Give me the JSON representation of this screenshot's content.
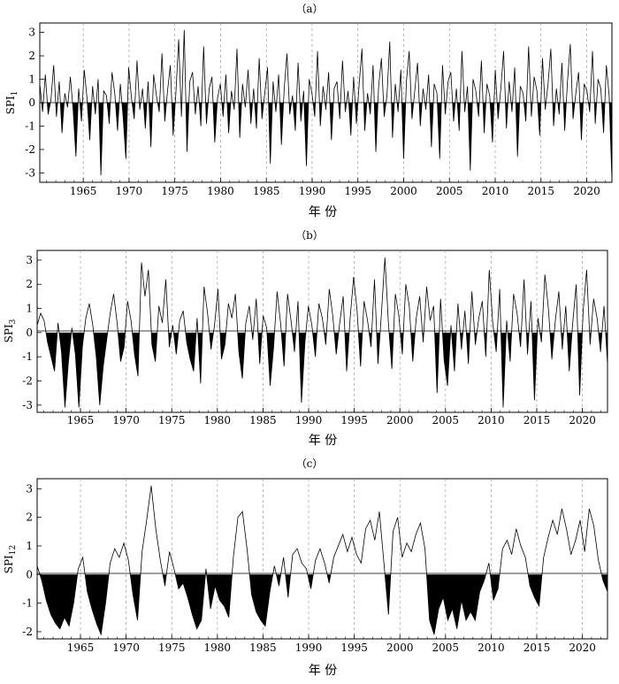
{
  "chart_data": [
    {
      "type": "area",
      "panel_label": "（a）",
      "ylabel": {
        "base": "SPI",
        "sub": "1"
      },
      "xlabel": "年 份",
      "x_range": [
        1960.25,
        2022.75
      ],
      "ylim": [
        -3.4,
        3.4
      ],
      "x_ticks": [
        "1965",
        "1970",
        "1975",
        "1980",
        "1985",
        "1990",
        "1995",
        "2000",
        "2005",
        "2010",
        "2015",
        "2020"
      ],
      "y_ticks": [
        "3",
        "2",
        "1",
        "0",
        "-1",
        "-2",
        "-3"
      ],
      "grid": "vertical dashed at 5-year ticks",
      "fill_negative": true,
      "series": [
        {
          "values": [
            0.8,
            -0.4,
            1.2,
            -0.5,
            0.1,
            1.6,
            -0.6,
            0.9,
            -1.3,
            0.4,
            -0.2,
            1.1,
            -0.3,
            -2.3,
            0.6,
            -0.8,
            1.4,
            0.2,
            -1.6,
            0.7,
            -0.5,
            1.0,
            -3.1,
            0.5,
            0.3,
            -0.9,
            1.3,
            0.4,
            -1.2,
            0.8,
            -0.6,
            -2.4,
            1.5,
            0.2,
            -0.7,
            1.8,
            -0.3,
            0.6,
            -1.1,
            0.9,
            -1.9,
            1.2,
            0.3,
            -0.4,
            2.1,
            -0.8,
            0.5,
            1.6,
            -1.4,
            0.4,
            2.7,
            -0.6,
            3.1,
            -2.1,
            0.9,
            1.3,
            -0.5,
            0.7,
            -1.0,
            2.4,
            -0.9,
            0.6,
            1.1,
            -1.7,
            0.2,
            0.8,
            -0.6,
            1.2,
            -1.3,
            0.5,
            -0.3,
            2.3,
            -1.5,
            0.8,
            -0.2,
            1.4,
            -0.9,
            0.6,
            -1.1,
            1.9,
            -0.7,
            0.4,
            1.5,
            -2.6,
            0.9,
            -0.4,
            1.2,
            -1.8,
            0.6,
            2.1,
            -0.5,
            0.3,
            -1.2,
            1.7,
            -0.8,
            0.5,
            -2.7,
            1.0,
            0.4,
            -0.6,
            2.2,
            -1.0,
            0.7,
            -0.3,
            1.3,
            -1.6,
            0.6,
            0.9,
            -0.7,
            1.8,
            -0.4,
            0.5,
            -1.4,
            1.1,
            -0.9,
            0.8,
            2.3,
            -1.2,
            0.4,
            -0.5,
            1.6,
            -2.1,
            0.7,
            1.9,
            -0.6,
            0.3,
            2.6,
            -1.5,
            0.8,
            -0.4,
            1.4,
            -2.4,
            0.9,
            2.2,
            -0.7,
            0.5,
            1.7,
            -1.0,
            0.6,
            -0.3,
            1.2,
            -1.9,
            0.8,
            0.4,
            -2.4,
            1.6,
            -0.5,
            0.9,
            1.3,
            -0.8,
            0.6,
            -1.2,
            2.2,
            -0.4,
            0.7,
            -2.9,
            1.0,
            0.5,
            -0.6,
            1.8,
            -1.3,
            0.8,
            0.3,
            -1.7,
            1.4,
            -0.7,
            0.6,
            2.2,
            -1.1,
            0.9,
            -0.4,
            1.5,
            -2.3,
            0.7,
            0.4,
            -0.8,
            2.4,
            -0.6,
            1.1,
            0.5,
            -1.4,
            1.9,
            -0.3,
            0.8,
            2.3,
            -1.0,
            0.6,
            -0.5,
            1.7,
            -1.2,
            0.9,
            2.5,
            -0.7,
            0.4,
            1.3,
            -1.6,
            0.8,
            0.5,
            -0.4,
            2.2,
            -0.9,
            1.0,
            0.6,
            -1.3,
            1.6,
            0.3,
            -3.3
          ]
        }
      ]
    },
    {
      "type": "area",
      "panel_label": "（b）",
      "ylabel": {
        "base": "SPI",
        "sub": "3"
      },
      "xlabel": "年 份",
      "x_range": [
        1960.25,
        2022.75
      ],
      "ylim": [
        -3.3,
        3.4
      ],
      "x_ticks": [
        "1965",
        "1970",
        "1975",
        "1980",
        "1985",
        "1990",
        "1995",
        "2000",
        "2005",
        "2010",
        "2015",
        "2020"
      ],
      "y_ticks": [
        "3",
        "2",
        "1",
        "0",
        "-1",
        "-2",
        "-3"
      ],
      "grid": "vertical dashed at 5-year ticks",
      "fill_negative": true,
      "series": [
        {
          "values": [
            0.3,
            0.8,
            0.5,
            -0.4,
            -1.0,
            -1.6,
            0.4,
            -0.8,
            -3.1,
            -1.2,
            0.2,
            -0.9,
            -3.1,
            -0.6,
            0.6,
            1.2,
            0.3,
            -1.0,
            -3.0,
            -1.4,
            -0.3,
            0.8,
            1.6,
            0.4,
            -1.2,
            -0.6,
            1.3,
            0.5,
            -0.9,
            -1.8,
            2.9,
            1.5,
            2.6,
            -0.5,
            -1.2,
            1.1,
            0.4,
            2.2,
            -0.6,
            0.3,
            -0.9,
            0.5,
            0.9,
            -0.4,
            -1.1,
            -1.6,
            0.6,
            -2.1,
            1.9,
            0.8,
            -0.7,
            0.3,
            1.8,
            -1.1,
            -0.5,
            1.2,
            0.6,
            1.6,
            -0.8,
            -1.9,
            0.4,
            1.1,
            -0.3,
            1.4,
            -1.3,
            0.7,
            0.2,
            -2.2,
            -0.6,
            1.7,
            0.4,
            -1.4,
            1.6,
            0.5,
            -0.8,
            1.3,
            -2.9,
            -0.4,
            1.1,
            0.3,
            -1.0,
            1.2,
            0.6,
            -0.5,
            1.8,
            0.7,
            -0.9,
            0.4,
            1.5,
            -1.6,
            0.6,
            2.3,
            0.9,
            -1.4,
            1.3,
            0.5,
            -0.6,
            2.2,
            -1.3,
            0.8,
            3.1,
            0.4,
            -1.5,
            1.6,
            0.7,
            -0.9,
            2.0,
            1.1,
            -1.2,
            0.6,
            1.5,
            -0.4,
            1.9,
            0.5,
            1.1,
            -2.5,
            1.4,
            -1.1,
            -2.2,
            0.3,
            -1.6,
            1.2,
            -0.7,
            0.9,
            -1.3,
            1.7,
            -0.5,
            0.6,
            1.3,
            -1.0,
            2.6,
            0.4,
            -0.8,
            1.8,
            -3.1,
            0.5,
            -1.2,
            1.6,
            0.8,
            -0.6,
            2.2,
            -0.9,
            1.3,
            -2.8,
            0.6,
            -0.4,
            2.4,
            1.0,
            -1.1,
            0.5,
            1.7,
            -0.7,
            1.1,
            -1.6,
            0.4,
            2.0,
            -2.6,
            0.9,
            2.6,
            -0.5,
            1.4,
            0.6,
            -0.8,
            1.1,
            -1.3
          ]
        }
      ]
    },
    {
      "type": "area",
      "panel_label": "（c）",
      "ylabel": {
        "base": "SPI",
        "sub": "12"
      },
      "xlabel": "年 份",
      "x_range": [
        1960.25,
        2022.75
      ],
      "ylim": [
        -2.25,
        3.35
      ],
      "x_ticks": [
        "1965",
        "1970",
        "1975",
        "1980",
        "1985",
        "1990",
        "1995",
        "2000",
        "2005",
        "2010",
        "2015",
        "2020"
      ],
      "y_ticks": [
        "3",
        "2",
        "1",
        "0",
        "-1",
        "-2"
      ],
      "grid": "vertical dashed at 5-year ticks",
      "fill_negative": true,
      "series": [
        {
          "values": [
            0.3,
            -0.2,
            -0.9,
            -1.4,
            -1.7,
            -1.9,
            -1.5,
            -1.8,
            -1.0,
            0.2,
            0.6,
            -0.6,
            -1.2,
            -1.7,
            -2.1,
            -1.0,
            0.4,
            0.9,
            0.6,
            1.1,
            0.5,
            -0.7,
            -1.6,
            0.8,
            1.9,
            3.1,
            1.6,
            0.5,
            -0.4,
            0.8,
            0.2,
            -0.5,
            -0.3,
            -0.8,
            -1.4,
            -1.9,
            -1.6,
            0.2,
            -1.2,
            -0.4,
            -0.9,
            -1.1,
            -1.5,
            0.6,
            2.0,
            2.2,
            0.9,
            -0.7,
            -1.3,
            -1.6,
            -1.8,
            -0.6,
            0.3,
            -0.4,
            0.6,
            -0.8,
            0.7,
            0.9,
            0.4,
            0.2,
            -0.5,
            0.5,
            0.9,
            0.4,
            -0.3,
            0.6,
            1.0,
            1.4,
            0.8,
            1.3,
            0.7,
            0.4,
            1.6,
            1.9,
            1.2,
            2.2,
            0.4,
            -1.4,
            1.5,
            2.0,
            0.6,
            1.1,
            0.8,
            1.4,
            1.8,
            0.9,
            -1.6,
            -2.1,
            -1.2,
            -0.8,
            -1.6,
            -1.2,
            -1.9,
            -0.9,
            -1.6,
            -1.3,
            -1.6,
            -0.6,
            -0.2,
            0.4,
            -0.9,
            -0.5,
            0.9,
            1.2,
            0.7,
            1.6,
            1.0,
            0.6,
            -0.4,
            -0.8,
            -1.1,
            0.6,
            1.3,
            1.9,
            1.4,
            2.3,
            1.6,
            0.7,
            1.2,
            1.9,
            0.8,
            2.3,
            1.7,
            0.5,
            -0.2,
            -0.6
          ]
        }
      ]
    }
  ]
}
